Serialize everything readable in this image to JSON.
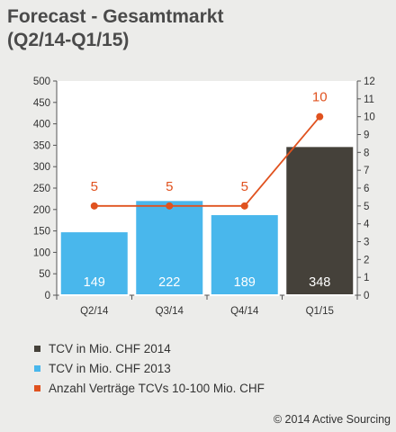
{
  "title": {
    "line1": "Forecast - Gesamtmarkt",
    "line2": "(Q2/14-Q1/15)"
  },
  "chart_data": {
    "type": "bar",
    "categories": [
      "Q2/14",
      "Q3/14",
      "Q4/14",
      "Q1/15"
    ],
    "series": [
      {
        "name": "TCV in Mio. CHF 2013",
        "values": [
          149,
          222,
          189,
          null
        ],
        "color": "#49b7ec",
        "kind": "bar"
      },
      {
        "name": "TCV in Mio. CHF 2014",
        "values": [
          null,
          null,
          null,
          348
        ],
        "color": "#45413a",
        "kind": "bar"
      },
      {
        "name": "Anzahl Verträge TCVs 10-100 Mio. CHF",
        "values": [
          5,
          5,
          5,
          10
        ],
        "color": "#e0521f",
        "kind": "line",
        "axis": "right"
      }
    ],
    "bar_labels": [
      "149",
      "222",
      "189",
      "348"
    ],
    "line_labels": [
      "5",
      "5",
      "5",
      "10"
    ],
    "y_left": {
      "ylim": [
        0,
        500
      ],
      "ticks": [
        0,
        50,
        100,
        150,
        200,
        250,
        300,
        350,
        400,
        450,
        500
      ]
    },
    "y_right": {
      "ylim": [
        0,
        12
      ],
      "ticks": [
        0,
        1,
        2,
        3,
        4,
        5,
        6,
        7,
        8,
        9,
        10,
        11,
        12
      ]
    },
    "grid": false
  },
  "legend": [
    {
      "label": "TCV in Mio. CHF 2014",
      "color": "#45413a"
    },
    {
      "label": "TCV in Mio. CHF 2013",
      "color": "#49b7ec"
    },
    {
      "label": "Anzahl Verträge TCVs 10-100 Mio. CHF",
      "color": "#e0521f"
    }
  ],
  "copyright": "© 2014 Active Sourcing"
}
